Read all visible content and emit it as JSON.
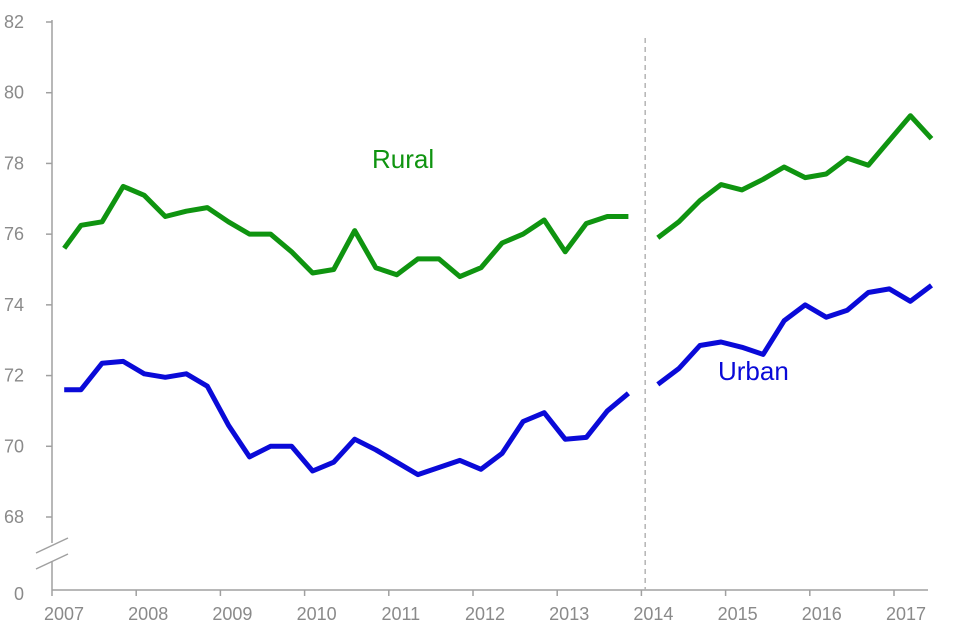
{
  "chart_data": {
    "type": "line",
    "title": "",
    "xlabel": "",
    "ylabel": "",
    "ylim": [
      68,
      82
    ],
    "y_axis_broken": true,
    "y_zero_label": "0",
    "y_ticks": [
      "82",
      "80",
      "78",
      "76",
      "74",
      "72",
      "70",
      "68"
    ],
    "x_tick_labels": [
      "2007",
      "2008",
      "2009",
      "2010",
      "2011",
      "2012",
      "2013",
      "2014",
      "2015",
      "2016",
      "2017"
    ],
    "x_range": [
      2007.0,
      2017.45
    ],
    "grid": false,
    "legend": "inline labels",
    "series_break_at": 2013.95,
    "series": [
      {
        "name": "Rural",
        "color": "#0f9410",
        "segments": [
          {
            "x": [
              2007.05,
              2007.25,
              2007.5,
              2007.75,
              2008.0,
              2008.25,
              2008.5,
              2008.75,
              2009.0,
              2009.25,
              2009.5,
              2009.75,
              2010.0,
              2010.25,
              2010.5,
              2010.75,
              2011.0,
              2011.25,
              2011.5,
              2011.75,
              2012.0,
              2012.25,
              2012.5,
              2012.75,
              2013.0,
              2013.25,
              2013.5,
              2013.75
            ],
            "y": [
              75.6,
              76.25,
              76.35,
              77.35,
              77.1,
              76.5,
              76.65,
              76.75,
              76.35,
              76.0,
              76.0,
              75.5,
              74.9,
              75.0,
              76.1,
              75.05,
              74.85,
              75.3,
              75.3,
              74.8,
              75.05,
              75.75,
              76.0,
              76.4,
              75.5,
              76.3,
              76.5,
              76.5
            ]
          },
          {
            "x": [
              2014.1,
              2014.35,
              2014.6,
              2014.85,
              2015.1,
              2015.35,
              2015.6,
              2015.85,
              2016.1,
              2016.35,
              2016.6,
              2016.85,
              2017.1,
              2017.35
            ],
            "y": [
              75.9,
              76.35,
              76.95,
              77.4,
              77.25,
              77.55,
              77.9,
              77.6,
              77.7,
              78.15,
              77.95,
              78.65,
              79.35,
              78.7
            ]
          }
        ]
      },
      {
        "name": "Urban",
        "color": "#0a0ad8",
        "segments": [
          {
            "x": [
              2007.05,
              2007.25,
              2007.5,
              2007.75,
              2008.0,
              2008.25,
              2008.5,
              2008.75,
              2009.0,
              2009.25,
              2009.5,
              2009.75,
              2010.0,
              2010.25,
              2010.5,
              2010.75,
              2011.0,
              2011.25,
              2011.5,
              2011.75,
              2012.0,
              2012.25,
              2012.5,
              2012.75,
              2013.0,
              2013.25,
              2013.5,
              2013.75
            ],
            "y": [
              71.6,
              71.6,
              72.35,
              72.4,
              72.05,
              71.95,
              72.05,
              71.7,
              70.6,
              69.7,
              70.0,
              70.0,
              69.3,
              69.55,
              70.2,
              69.9,
              69.55,
              69.2,
              69.4,
              69.6,
              69.35,
              69.8,
              70.7,
              70.95,
              70.2,
              70.25,
              71.0,
              71.5
            ]
          },
          {
            "x": [
              2014.1,
              2014.35,
              2014.6,
              2014.85,
              2015.1,
              2015.35,
              2015.6,
              2015.85,
              2016.1,
              2016.35,
              2016.6,
              2016.85,
              2017.1,
              2017.35
            ],
            "y": [
              71.75,
              72.2,
              72.85,
              72.95,
              72.8,
              72.6,
              73.55,
              74.0,
              73.65,
              73.85,
              74.35,
              74.45,
              74.1,
              74.55
            ]
          }
        ]
      }
    ]
  }
}
